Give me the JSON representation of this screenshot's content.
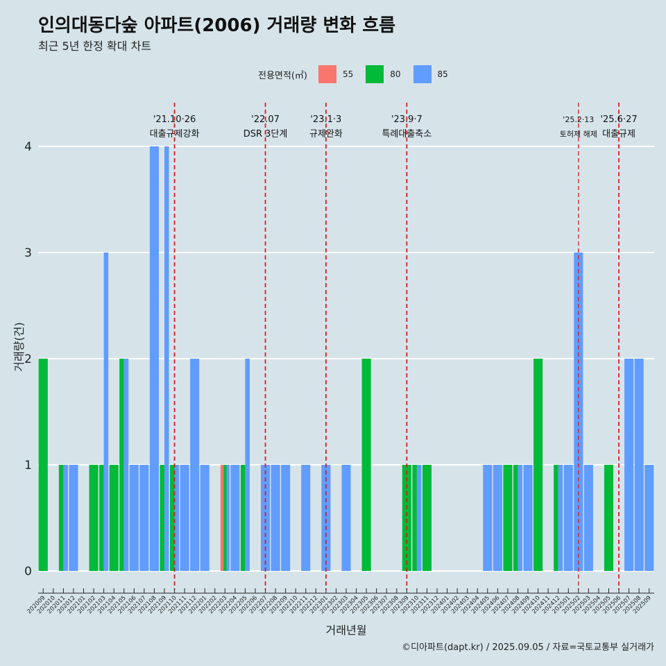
{
  "title": "인의대동다숲 아파트(2006) 거래량 변화 흐름",
  "subtitle": "최근 5년 한정 확대 차트",
  "legend": {
    "title": "전용면적(㎡)",
    "items": [
      {
        "label": "55",
        "color": "#F8766D"
      },
      {
        "label": "80",
        "color": "#00BA38"
      },
      {
        "label": "85",
        "color": "#619CFF"
      }
    ]
  },
  "caption": "©디아파트(dapt.kr) / 2025.09.05 / 자료=국토교통부 실거래가",
  "chart_data": {
    "type": "bar",
    "xlabel": "거래년월",
    "ylabel": "거래량(건)",
    "ylim": [
      0,
      4
    ],
    "yticks": [
      0,
      1,
      2,
      3,
      4
    ],
    "grid": true,
    "legend_position": "top",
    "categories": [
      "202009",
      "202010",
      "202011",
      "202012",
      "202101",
      "202102",
      "202103",
      "202104",
      "202105",
      "202106",
      "202107",
      "202108",
      "202109",
      "202110",
      "202111",
      "202112",
      "202201",
      "202202",
      "202203",
      "202204",
      "202205",
      "202206",
      "202207",
      "202208",
      "202209",
      "202210",
      "202211",
      "202212",
      "202301",
      "202302",
      "202303",
      "202304",
      "202305",
      "202306",
      "202307",
      "202308",
      "202309",
      "202310",
      "202311",
      "202312",
      "202401",
      "202402",
      "202403",
      "202404",
      "202405",
      "202406",
      "202407",
      "202408",
      "202409",
      "202410",
      "202411",
      "202412",
      "202501",
      "202502",
      "202503",
      "202504",
      "202505",
      "202506",
      "202507",
      "202508",
      "202509"
    ],
    "bars": [
      {
        "month": "202009",
        "parts": [
          {
            "s": "80",
            "v": 2
          }
        ]
      },
      {
        "month": "202011",
        "parts": [
          {
            "s": "80",
            "v": 1
          },
          {
            "s": "85",
            "v": 1
          }
        ]
      },
      {
        "month": "202012",
        "parts": [
          {
            "s": "85",
            "v": 1
          }
        ]
      },
      {
        "month": "202102",
        "parts": [
          {
            "s": "80",
            "v": 1
          }
        ]
      },
      {
        "month": "202103",
        "parts": [
          {
            "s": "80",
            "v": 1
          },
          {
            "s": "85",
            "v": 3
          }
        ]
      },
      {
        "month": "202104",
        "parts": [
          {
            "s": "80",
            "v": 1
          }
        ]
      },
      {
        "month": "202105",
        "parts": [
          {
            "s": "80",
            "v": 2
          },
          {
            "s": "85",
            "v": 2
          }
        ]
      },
      {
        "month": "202106",
        "parts": [
          {
            "s": "85",
            "v": 1
          }
        ]
      },
      {
        "month": "202107",
        "parts": [
          {
            "s": "85",
            "v": 1
          }
        ]
      },
      {
        "month": "202108",
        "parts": [
          {
            "s": "85",
            "v": 4
          }
        ]
      },
      {
        "month": "202109",
        "parts": [
          {
            "s": "80",
            "v": 1
          },
          {
            "s": "85",
            "v": 4
          }
        ]
      },
      {
        "month": "202110",
        "parts": [
          {
            "s": "80",
            "v": 1
          },
          {
            "s": "85",
            "v": 1
          }
        ]
      },
      {
        "month": "202111",
        "parts": [
          {
            "s": "85",
            "v": 1
          }
        ]
      },
      {
        "month": "202112",
        "parts": [
          {
            "s": "85",
            "v": 2
          }
        ]
      },
      {
        "month": "202201",
        "parts": [
          {
            "s": "85",
            "v": 1
          }
        ]
      },
      {
        "month": "202203",
        "parts": [
          {
            "s": "55",
            "v": 1
          },
          {
            "s": "80",
            "v": 1
          },
          {
            "s": "85",
            "v": 1
          }
        ]
      },
      {
        "month": "202204",
        "parts": [
          {
            "s": "85",
            "v": 1
          }
        ]
      },
      {
        "month": "202205",
        "parts": [
          {
            "s": "80",
            "v": 1
          },
          {
            "s": "85",
            "v": 2
          }
        ]
      },
      {
        "month": "202207",
        "parts": [
          {
            "s": "85",
            "v": 1
          }
        ]
      },
      {
        "month": "202208",
        "parts": [
          {
            "s": "85",
            "v": 1
          }
        ]
      },
      {
        "month": "202209",
        "parts": [
          {
            "s": "85",
            "v": 1
          }
        ]
      },
      {
        "month": "202211",
        "parts": [
          {
            "s": "85",
            "v": 1
          }
        ]
      },
      {
        "month": "202301",
        "parts": [
          {
            "s": "85",
            "v": 1
          }
        ]
      },
      {
        "month": "202303",
        "parts": [
          {
            "s": "85",
            "v": 1
          }
        ]
      },
      {
        "month": "202305",
        "parts": [
          {
            "s": "80",
            "v": 2
          }
        ]
      },
      {
        "month": "202309",
        "parts": [
          {
            "s": "80",
            "v": 1
          }
        ]
      },
      {
        "month": "202310",
        "parts": [
          {
            "s": "80",
            "v": 1
          },
          {
            "s": "85",
            "v": 1
          }
        ]
      },
      {
        "month": "202311",
        "parts": [
          {
            "s": "80",
            "v": 1
          }
        ]
      },
      {
        "month": "202405",
        "parts": [
          {
            "s": "85",
            "v": 1
          }
        ]
      },
      {
        "month": "202406",
        "parts": [
          {
            "s": "85",
            "v": 1
          }
        ]
      },
      {
        "month": "202407",
        "parts": [
          {
            "s": "80",
            "v": 1
          }
        ]
      },
      {
        "month": "202408",
        "parts": [
          {
            "s": "80",
            "v": 1
          },
          {
            "s": "85",
            "v": 1
          }
        ]
      },
      {
        "month": "202409",
        "parts": [
          {
            "s": "85",
            "v": 1
          }
        ]
      },
      {
        "month": "202410",
        "parts": [
          {
            "s": "80",
            "v": 2
          }
        ]
      },
      {
        "month": "202412",
        "parts": [
          {
            "s": "80",
            "v": 1
          },
          {
            "s": "85",
            "v": 1
          }
        ]
      },
      {
        "month": "202501",
        "parts": [
          {
            "s": "85",
            "v": 1
          }
        ]
      },
      {
        "month": "202502",
        "parts": [
          {
            "s": "85",
            "v": 3
          }
        ]
      },
      {
        "month": "202503",
        "parts": [
          {
            "s": "85",
            "v": 1
          }
        ]
      },
      {
        "month": "202505",
        "parts": [
          {
            "s": "80",
            "v": 1
          }
        ]
      },
      {
        "month": "202507",
        "parts": [
          {
            "s": "85",
            "v": 2
          }
        ]
      },
      {
        "month": "202508",
        "parts": [
          {
            "s": "85",
            "v": 2
          }
        ]
      },
      {
        "month": "202509",
        "parts": [
          {
            "s": "85",
            "v": 1
          }
        ]
      }
    ],
    "annotations": [
      {
        "at": "202110",
        "date": "'21.10·26",
        "text": "대출규제강화"
      },
      {
        "at": "202207",
        "date": "'22.07",
        "text": "DSR 3단계"
      },
      {
        "at": "202301",
        "date": "'23.1·3",
        "text": "규제완화"
      },
      {
        "at": "202309",
        "date": "'23.9·7",
        "text": "특례대출축소"
      },
      {
        "at": "202502",
        "date": "'25.2·13",
        "text": "토허제 해제"
      },
      {
        "at": "202506",
        "date": "'25.6·27",
        "text": "대출규제"
      }
    ]
  }
}
